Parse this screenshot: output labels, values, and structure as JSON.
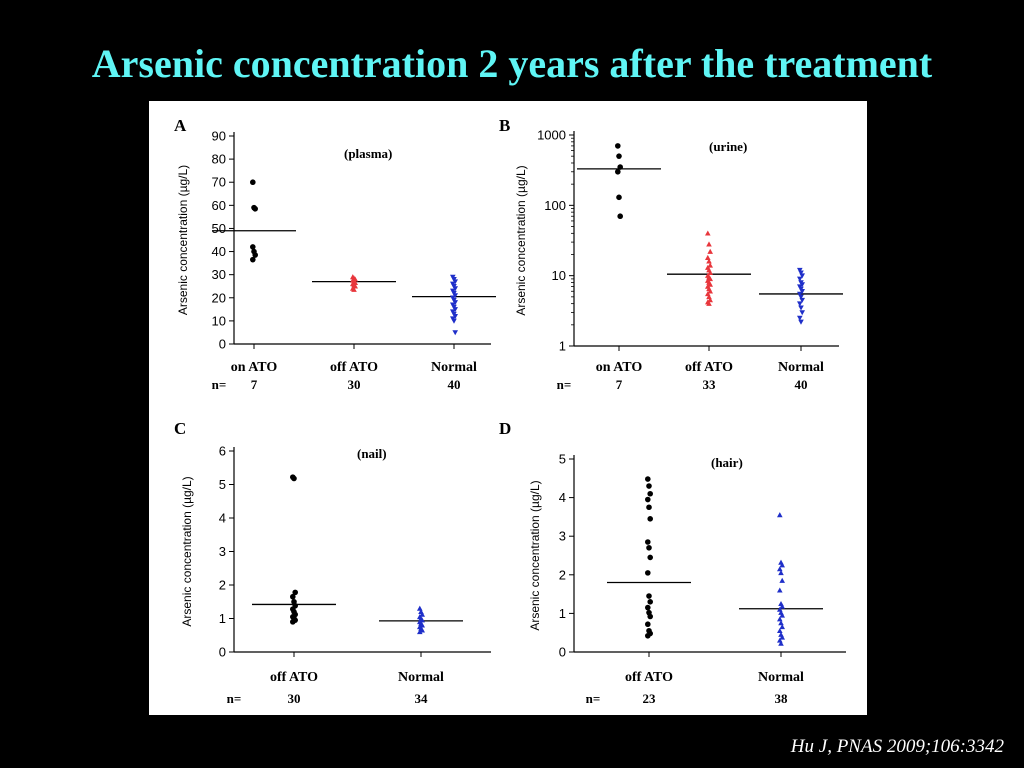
{
  "slide": {
    "title": "Arsenic concentration 2 years after the treatment",
    "citation": "Hu J, PNAS 2009;106:3342"
  },
  "colors": {
    "title": "#5ff5f5",
    "black_group": "#000000",
    "red_group": "#e8363c",
    "blue_group": "#1f2fc9"
  },
  "chart_data": [
    {
      "panel": "A",
      "type": "scatter",
      "subtitle": "(plasma)",
      "ylabel": "Arsenic concentration (µg/L)",
      "scale": "linear",
      "ylim": [
        0,
        90
      ],
      "yticks": [
        0,
        10,
        20,
        30,
        40,
        50,
        60,
        70,
        80,
        90
      ],
      "n_label": "n=",
      "groups": [
        {
          "name": "on ATO",
          "n": "7",
          "color": "#000000",
          "marker": "circle",
          "median": 49,
          "values": [
            70,
            59,
            58.5,
            42,
            40,
            38.5,
            36.5
          ]
        },
        {
          "name": "off ATO",
          "n": "30",
          "color": "#e8363c",
          "marker": "triangle",
          "median": 27,
          "values": [
            29,
            28.5,
            28,
            27.5,
            27,
            26.5,
            26,
            25.5,
            25,
            24,
            23.5
          ]
        },
        {
          "name": "Normal",
          "n": "40",
          "color": "#1f2fc9",
          "marker": "triangle-down",
          "median": 20.5,
          "values": [
            29,
            28,
            27,
            26,
            25,
            24,
            23,
            22,
            21,
            20,
            19,
            18,
            17,
            16,
            15,
            14,
            13,
            12,
            11,
            10,
            5
          ]
        }
      ]
    },
    {
      "panel": "B",
      "type": "scatter",
      "subtitle": "(urine)",
      "ylabel": "Arsenic concentration (µg/L)",
      "scale": "log",
      "ylim": [
        1,
        1000
      ],
      "yticks": [
        1,
        10,
        100,
        1000
      ],
      "n_label": "n=",
      "groups": [
        {
          "name": "on ATO",
          "n": "7",
          "color": "#000000",
          "marker": "circle",
          "median": 330,
          "values": [
            700,
            500,
            350,
            300,
            130,
            70
          ]
        },
        {
          "name": "off ATO",
          "n": "33",
          "color": "#e8363c",
          "marker": "triangle",
          "median": 10.5,
          "values": [
            40,
            28,
            22,
            18,
            16,
            14,
            13,
            12,
            11,
            10,
            9.5,
            9,
            8.5,
            8,
            7.5,
            7,
            6.5,
            6,
            5.5,
            5,
            4.5,
            4.2,
            4
          ]
        },
        {
          "name": "Normal",
          "n": "40",
          "color": "#1f2fc9",
          "marker": "triangle-down",
          "median": 5.5,
          "values": [
            12,
            11,
            10,
            9,
            8,
            7.5,
            7,
            6.5,
            6,
            5.5,
            5,
            4.5,
            4,
            3.5,
            3,
            2.5,
            2.2
          ]
        }
      ]
    },
    {
      "panel": "C",
      "type": "scatter",
      "subtitle": "(nail)",
      "ylabel": "Arsenic concentration (µg/L)",
      "scale": "linear",
      "ylim": [
        0,
        6
      ],
      "yticks": [
        0,
        1,
        2,
        3,
        4,
        5,
        6
      ],
      "n_label": "n=",
      "groups": [
        {
          "name": "off ATO",
          "n": "30",
          "color": "#000000",
          "marker": "circle",
          "median": 1.42,
          "values": [
            5.22,
            5.18,
            1.78,
            1.65,
            1.5,
            1.38,
            1.28,
            1.2,
            1.12,
            1.05,
            1.0,
            0.95,
            0.9
          ]
        },
        {
          "name": "Normal",
          "n": "34",
          "color": "#1f2fc9",
          "marker": "triangle",
          "median": 0.93,
          "values": [
            1.3,
            1.2,
            1.12,
            1.05,
            1.0,
            0.95,
            0.9,
            0.85,
            0.8,
            0.75,
            0.7,
            0.65,
            0.6
          ]
        }
      ]
    },
    {
      "panel": "D",
      "type": "scatter",
      "subtitle": "(hair)",
      "ylabel": "Arsenic concentration (µg/L)",
      "scale": "linear",
      "ylim": [
        0,
        5
      ],
      "yticks": [
        0,
        1,
        2,
        3,
        4,
        5
      ],
      "n_label": "n=",
      "groups": [
        {
          "name": "off ATO",
          "n": "23",
          "color": "#000000",
          "marker": "circle",
          "median": 1.8,
          "values": [
            4.48,
            4.3,
            4.1,
            3.95,
            3.75,
            3.45,
            2.85,
            2.7,
            2.45,
            2.05,
            1.45,
            1.3,
            1.15,
            1.02,
            0.92,
            0.72,
            0.55,
            0.48,
            0.42
          ]
        },
        {
          "name": "Normal",
          "n": "38",
          "color": "#1f2fc9",
          "marker": "triangle",
          "median": 1.12,
          "values": [
            3.55,
            2.32,
            2.25,
            2.15,
            2.05,
            1.85,
            1.6,
            1.25,
            1.18,
            1.1,
            1.02,
            0.95,
            0.85,
            0.75,
            0.65,
            0.55,
            0.45,
            0.38,
            0.3,
            0.22
          ]
        }
      ]
    }
  ]
}
